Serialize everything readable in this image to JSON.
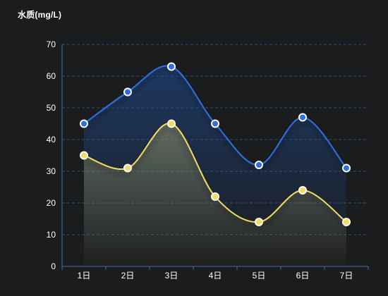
{
  "chart_data": {
    "type": "line",
    "title": "水质(mg/L)",
    "categories": [
      "1日",
      "2日",
      "3日",
      "4日",
      "5日",
      "6日",
      "7日"
    ],
    "ylim": [
      0,
      70
    ],
    "yticks": [
      0,
      10,
      20,
      30,
      40,
      50,
      60,
      70
    ],
    "grid": true,
    "grid_style": "dashed",
    "series": [
      {
        "values": [
          45,
          55,
          63,
          45,
          32,
          47,
          31
        ],
        "color": "#2f6fe0",
        "marker_fill": "#2f6fe0"
      },
      {
        "values": [
          35,
          31,
          45,
          22,
          14,
          24,
          14
        ],
        "color": "#f2dc60",
        "marker_fill": "#f2dc60"
      }
    ]
  },
  "colors": {
    "background": "#1b1c1d",
    "axis": "#3b6bb2",
    "grid": "#3b6bb2",
    "text": "#ffffff"
  }
}
